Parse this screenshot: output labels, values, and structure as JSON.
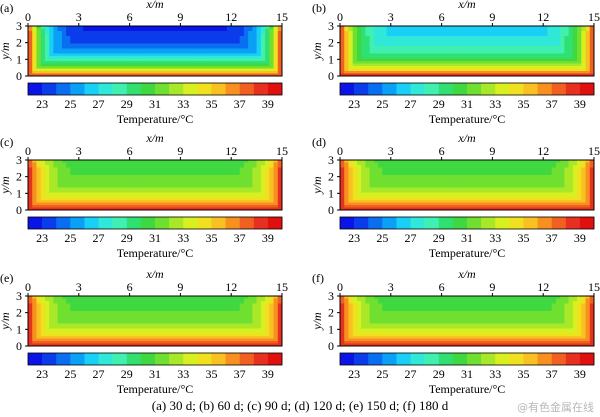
{
  "figure": {
    "caption": "(a) 30 d; (b) 60 d; (c) 90 d; (d) 120 d; (e) 150 d; (f) 180 d",
    "watermark": "@有色金属在线"
  },
  "chart_data": [
    {
      "panel": "(a)",
      "type": "heatmap",
      "xlabel": "x/m",
      "ylabel": "y/m",
      "xlim": [
        0,
        15
      ],
      "ylim": [
        0,
        3
      ],
      "xticks": [
        0,
        3,
        6,
        9,
        12,
        15
      ],
      "yticks": [
        0,
        1,
        2,
        3
      ],
      "colorbar": {
        "label": "Temperature/°C",
        "range": [
          22,
          40
        ],
        "ticks": [
          23,
          25,
          27,
          29,
          31,
          33,
          35,
          37,
          39
        ],
        "levels": 18
      },
      "boundary_temperature": 39,
      "interior_temperature_min": 22,
      "surface_temperature_near": 23
    },
    {
      "panel": "(b)",
      "type": "heatmap",
      "xlabel": "x/m",
      "ylabel": "y/m",
      "xlim": [
        0,
        15
      ],
      "ylim": [
        0,
        3
      ],
      "xticks": [
        0,
        3,
        6,
        9,
        12,
        15
      ],
      "yticks": [
        0,
        1,
        2,
        3
      ],
      "colorbar": {
        "label": "Temperature/°C",
        "range": [
          22,
          40
        ],
        "ticks": [
          23,
          25,
          27,
          29,
          31,
          33,
          35,
          37,
          39
        ],
        "levels": 18
      },
      "boundary_temperature": 39,
      "interior_temperature_min": 26,
      "surface_temperature_near": 27
    },
    {
      "panel": "(c)",
      "type": "heatmap",
      "xlabel": "x/m",
      "ylabel": "y/m",
      "xlim": [
        0,
        15
      ],
      "ylim": [
        0,
        3
      ],
      "xticks": [
        0,
        3,
        6,
        9,
        12,
        15
      ],
      "yticks": [
        0,
        1,
        2,
        3
      ],
      "colorbar": {
        "label": "Temperature/°C",
        "range": [
          22,
          40
        ],
        "ticks": [
          23,
          25,
          27,
          29,
          31,
          33,
          35,
          37,
          39
        ],
        "levels": 18
      },
      "boundary_temperature": 39,
      "interior_temperature_min": 30,
      "surface_temperature_near": 29
    },
    {
      "panel": "(d)",
      "type": "heatmap",
      "xlabel": "x/m",
      "ylabel": "y/m",
      "xlim": [
        0,
        15
      ],
      "ylim": [
        0,
        3
      ],
      "xticks": [
        0,
        3,
        6,
        9,
        12,
        15
      ],
      "yticks": [
        0,
        1,
        2,
        3
      ],
      "colorbar": {
        "label": "Temperature/°C",
        "range": [
          22,
          40
        ],
        "ticks": [
          23,
          25,
          27,
          29,
          31,
          33,
          35,
          37,
          39
        ],
        "levels": 18
      },
      "boundary_temperature": 39,
      "interior_temperature_min": 30,
      "surface_temperature_near": 29
    },
    {
      "panel": "(e)",
      "type": "heatmap",
      "xlabel": "x/m",
      "ylabel": "y/m",
      "xlim": [
        0,
        15
      ],
      "ylim": [
        0,
        3
      ],
      "xticks": [
        0,
        3,
        6,
        9,
        12,
        15
      ],
      "yticks": [
        0,
        1,
        2,
        3
      ],
      "colorbar": {
        "label": "Temperature/°C",
        "range": [
          22,
          40
        ],
        "ticks": [
          23,
          25,
          27,
          29,
          31,
          33,
          35,
          37,
          39
        ],
        "levels": 18
      },
      "boundary_temperature": 39,
      "interior_temperature_min": 30,
      "surface_temperature_near": 29
    },
    {
      "panel": "(f)",
      "type": "heatmap",
      "xlabel": "x/m",
      "ylabel": "y/m",
      "xlim": [
        0,
        15
      ],
      "ylim": [
        0,
        3
      ],
      "xticks": [
        0,
        3,
        6,
        9,
        12,
        15
      ],
      "yticks": [
        0,
        1,
        2,
        3
      ],
      "colorbar": {
        "label": "Temperature/°C",
        "range": [
          22,
          40
        ],
        "ticks": [
          23,
          25,
          27,
          29,
          31,
          33,
          35,
          37,
          39
        ],
        "levels": 18
      },
      "boundary_temperature": 39,
      "interior_temperature_min": 30,
      "surface_temperature_near": 29
    }
  ],
  "colormap": [
    "#0a14e6",
    "#0a3ceb",
    "#0a6ef0",
    "#0aa0f5",
    "#18d0f5",
    "#30e8d8",
    "#40f0b0",
    "#30e070",
    "#40d840",
    "#70e030",
    "#a8e828",
    "#d8f020",
    "#f0e020",
    "#f8c020",
    "#f89020",
    "#f06020",
    "#e83020",
    "#e01010"
  ]
}
